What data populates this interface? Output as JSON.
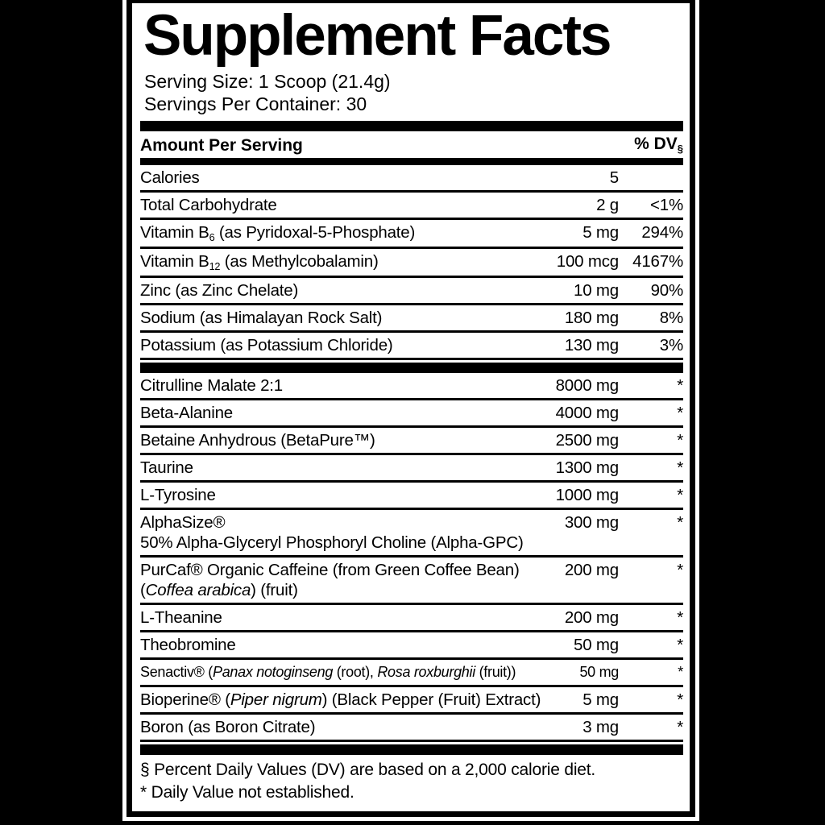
{
  "colors": {
    "background": "#000000",
    "panel": "#ffffff",
    "text": "#000000"
  },
  "title": "Supplement Facts",
  "serving": {
    "size": "Serving Size: 1 Scoop (21.4g)",
    "per_container": "Servings Per Container: 30"
  },
  "header": {
    "amount_label": "Amount Per Serving",
    "dv_label": "% DV",
    "dv_note_symbol": "§"
  },
  "nutrients": [
    {
      "lines": [
        [
          {
            "t": "Calories"
          }
        ]
      ],
      "amount": "5",
      "dv": ""
    },
    {
      "lines": [
        [
          {
            "t": "Total Carbohydrate"
          }
        ]
      ],
      "amount": "2 g",
      "dv": "<1%"
    },
    {
      "lines": [
        [
          {
            "t": "Vitamin B"
          },
          {
            "t": "6",
            "sub": true
          },
          {
            "t": " (as Pyridoxal-5-Phosphate)"
          }
        ]
      ],
      "amount": "5 mg",
      "dv": "294%"
    },
    {
      "lines": [
        [
          {
            "t": "Vitamin B"
          },
          {
            "t": "12",
            "sub": true
          },
          {
            "t": " (as Methylcobalamin)"
          }
        ]
      ],
      "amount": "100 mcg",
      "dv": "4167%"
    },
    {
      "lines": [
        [
          {
            "t": "Zinc (as Zinc Chelate)"
          }
        ]
      ],
      "amount": "10 mg",
      "dv": "90%"
    },
    {
      "lines": [
        [
          {
            "t": "Sodium (as Himalayan Rock Salt)"
          }
        ]
      ],
      "amount": "180 mg",
      "dv": "8%"
    },
    {
      "lines": [
        [
          {
            "t": "Potassium (as Potassium Chloride)"
          }
        ]
      ],
      "amount": "130 mg",
      "dv": "3%"
    }
  ],
  "ingredients": [
    {
      "lines": [
        [
          {
            "t": "Citrulline Malate 2:1"
          }
        ]
      ],
      "amount": "8000 mg",
      "dv": "*"
    },
    {
      "lines": [
        [
          {
            "t": "Beta-Alanine"
          }
        ]
      ],
      "amount": "4000 mg",
      "dv": "*"
    },
    {
      "lines": [
        [
          {
            "t": "Betaine Anhydrous (BetaPure™)"
          }
        ]
      ],
      "amount": "2500 mg",
      "dv": "*"
    },
    {
      "lines": [
        [
          {
            "t": "Taurine"
          }
        ]
      ],
      "amount": "1300 mg",
      "dv": "*"
    },
    {
      "lines": [
        [
          {
            "t": "L-Tyrosine"
          }
        ]
      ],
      "amount": "1000 mg",
      "dv": "*"
    },
    {
      "lines": [
        [
          {
            "t": "AlphaSize®"
          }
        ],
        [
          {
            "t": "50% Alpha-Glyceryl Phosphoryl Choline (Alpha-GPC)"
          }
        ]
      ],
      "amount": "300 mg",
      "dv": "*"
    },
    {
      "lines": [
        [
          {
            "t": "PurCaf® Organic Caffeine (from Green Coffee Bean)"
          }
        ],
        [
          {
            "t": "("
          },
          {
            "t": "Coffea arabica",
            "i": true
          },
          {
            "t": ") (fruit)"
          }
        ]
      ],
      "amount": "200 mg",
      "dv": "*"
    },
    {
      "lines": [
        [
          {
            "t": "L-Theanine"
          }
        ]
      ],
      "amount": "200 mg",
      "dv": "*"
    },
    {
      "lines": [
        [
          {
            "t": "Theobromine"
          }
        ]
      ],
      "amount": "50 mg",
      "dv": "*"
    },
    {
      "lines": [
        [
          {
            "t": "Senactiv® ("
          },
          {
            "t": "Panax notoginseng",
            "i": true
          },
          {
            "t": " (root), "
          },
          {
            "t": "Rosa roxburghii",
            "i": true
          },
          {
            "t": " (fruit))"
          }
        ]
      ],
      "amount": "50 mg",
      "dv": "*",
      "small": true
    },
    {
      "lines": [
        [
          {
            "t": "Bioperine® ("
          },
          {
            "t": "Piper nigrum",
            "i": true
          },
          {
            "t": ") (Black Pepper (Fruit) Extract)"
          }
        ]
      ],
      "amount": "5 mg",
      "dv": "*"
    },
    {
      "lines": [
        [
          {
            "t": "Boron (as Boron Citrate)"
          }
        ]
      ],
      "amount": "3 mg",
      "dv": "*"
    }
  ],
  "footnotes": [
    "§ Percent Daily Values (DV) are based on a 2,000 calorie diet.",
    "* Daily Value not established."
  ]
}
